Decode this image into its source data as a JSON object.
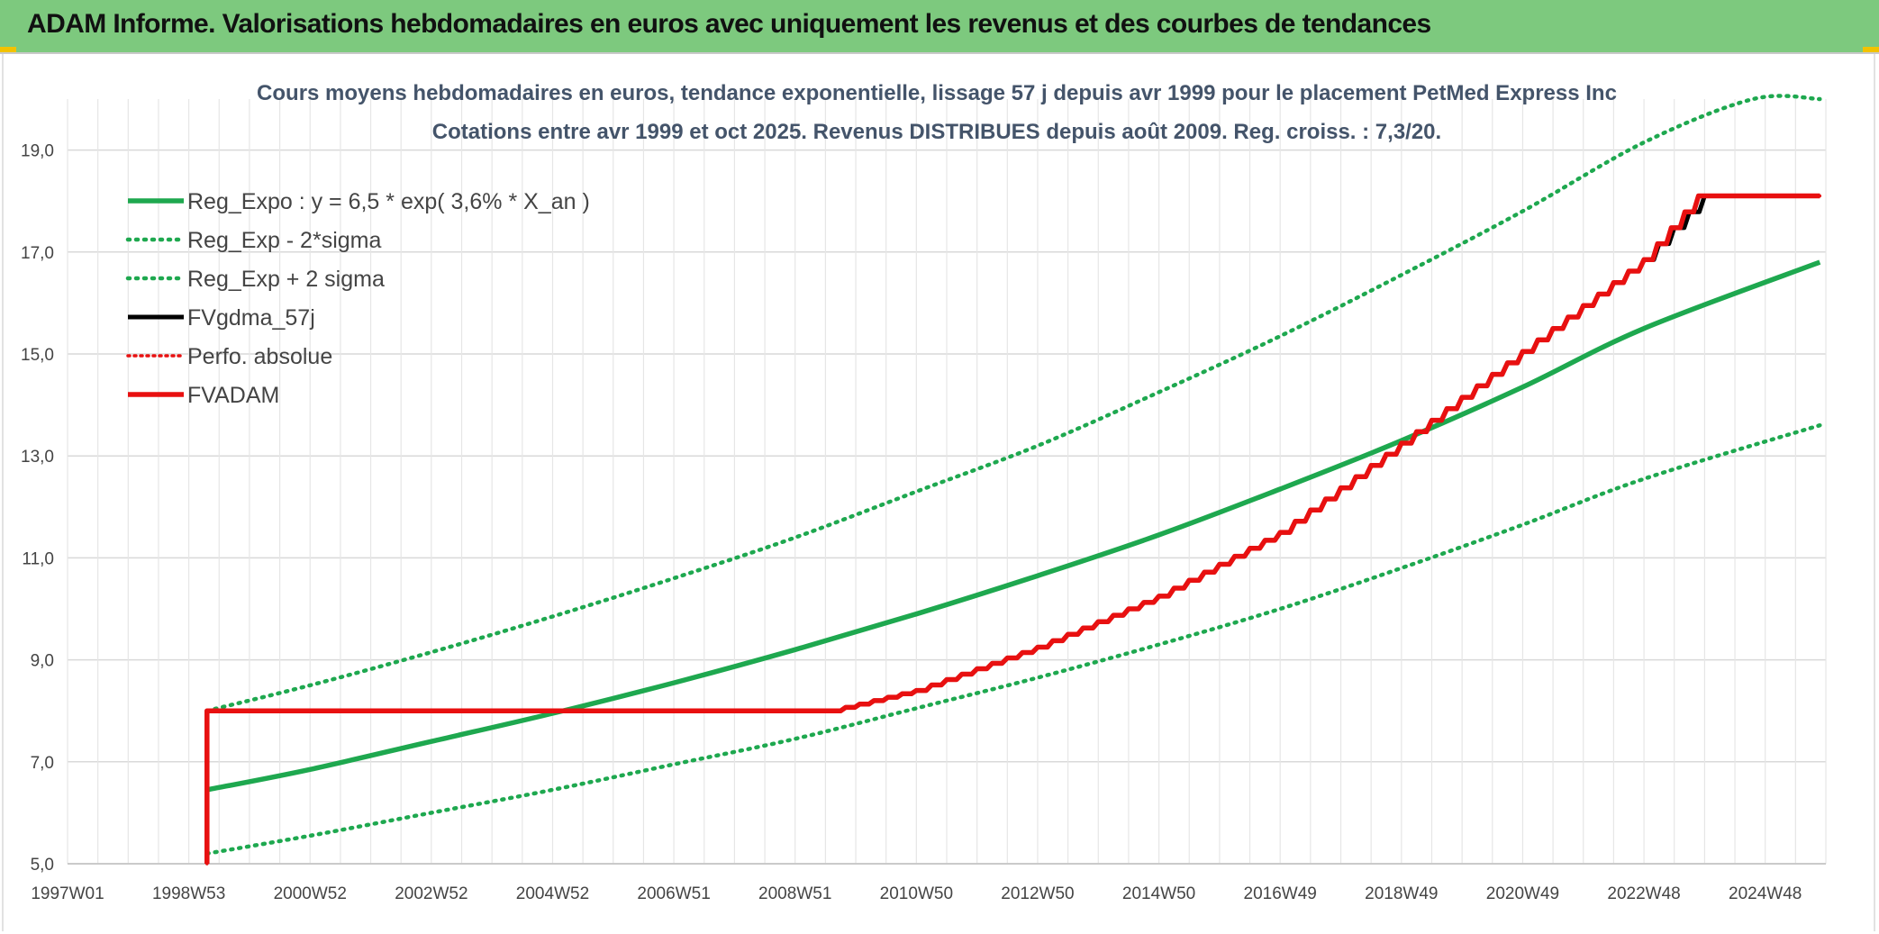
{
  "header": {
    "title": "ADAM Informe. Valorisations hebdomadaires en euros avec uniquement les revenus et des courbes de tendances"
  },
  "colors": {
    "banner": "#7dc97e",
    "reg_green": "#1ea84f",
    "adam_red": "#e81010",
    "fv_black": "#000000",
    "grid": "#d9d9d9"
  },
  "chart_data": {
    "type": "line",
    "title": "Cours moyens hebdomadaires en euros, tendance exponentielle, lissage 57 j depuis avr 1999 pour le placement PetMed Express Inc",
    "subtitle": "Cotations entre avr 1999 et oct 2025. Revenus DISTRIBUES depuis août 2009. Reg. croiss. : 7,3/20.",
    "xlabel": "",
    "ylabel": "",
    "x_ticks": [
      "1997W01",
      "1998W53",
      "2000W52",
      "2002W52",
      "2004W52",
      "2006W51",
      "2008W51",
      "2010W50",
      "2012W50",
      "2014W50",
      "2016W49",
      "2018W49",
      "2020W49",
      "2022W48",
      "2024W48"
    ],
    "y_ticks": [
      "5,0",
      "7,0",
      "9,0",
      "11,0",
      "13,0",
      "15,0",
      "17,0",
      "19,0"
    ],
    "xlim": [
      1997.0,
      2026.0
    ],
    "ylim": [
      5.0,
      20.0
    ],
    "grid": true,
    "legend_position": "top-left",
    "series": [
      {
        "name": "Reg_Expo : y = 6,5 * exp( 3,6% *  X_an )",
        "style": "solid-green",
        "x": [
          1999.3,
          2001,
          2003,
          2005,
          2007,
          2009,
          2011,
          2013,
          2015,
          2017,
          2019,
          2021,
          2023,
          2025.9
        ],
        "values": [
          6.45,
          6.85,
          7.4,
          7.95,
          8.55,
          9.2,
          9.9,
          10.65,
          11.45,
          12.35,
          13.3,
          14.35,
          15.5,
          16.8
        ]
      },
      {
        "name": "Reg_Exp - 2*sigma",
        "style": "dotted-green",
        "x": [
          1999.3,
          2001,
          2003,
          2005,
          2007,
          2009,
          2011,
          2013,
          2015,
          2017,
          2019,
          2021,
          2023,
          2025.9
        ],
        "values": [
          5.2,
          5.55,
          6.0,
          6.45,
          6.95,
          7.45,
          8.05,
          8.65,
          9.3,
          10.0,
          10.8,
          11.65,
          12.55,
          13.6
        ]
      },
      {
        "name": "Reg_Exp + 2 sigma",
        "style": "dotted-green",
        "x": [
          1999.3,
          2001,
          2003,
          2005,
          2007,
          2009,
          2011,
          2013,
          2015,
          2017,
          2019,
          2021,
          2023,
          2024.8,
          2025.9
        ],
        "values": [
          8.0,
          8.5,
          9.15,
          9.85,
          10.6,
          11.4,
          12.3,
          13.2,
          14.25,
          15.35,
          16.55,
          17.8,
          19.15,
          20.0,
          20.0
        ]
      },
      {
        "name": "FVgdma_57j",
        "style": "solid-black",
        "x": [
          1999.3,
          1999.3,
          2009.6,
          2011,
          2013,
          2015,
          2017,
          2019,
          2021,
          2023,
          2024.0,
          2025.9
        ],
        "values": [
          5.0,
          8.0,
          8.0,
          8.4,
          9.25,
          10.25,
          11.5,
          13.25,
          15.05,
          16.85,
          18.1,
          18.1
        ]
      },
      {
        "name": "Perfo. absolue",
        "style": "dotted-red",
        "x": [
          1999.3,
          1999.3,
          2009.6,
          2011,
          2013,
          2015,
          2017,
          2019,
          2021,
          2023,
          2023.9,
          2025.9
        ],
        "values": [
          5.0,
          8.0,
          8.0,
          8.4,
          9.25,
          10.25,
          11.5,
          13.25,
          15.05,
          16.85,
          18.1,
          18.1
        ]
      },
      {
        "name": "FVADAM",
        "style": "solid-red",
        "x": [
          1999.3,
          1999.3,
          2009.6,
          2011,
          2013,
          2015,
          2017,
          2019,
          2021,
          2023,
          2023.9,
          2025.9
        ],
        "values": [
          5.0,
          8.0,
          8.0,
          8.4,
          9.25,
          10.25,
          11.5,
          13.25,
          15.05,
          16.85,
          18.1,
          18.1
        ]
      }
    ]
  }
}
